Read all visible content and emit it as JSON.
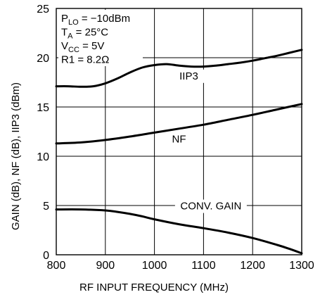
{
  "chart_data": {
    "type": "line",
    "title": "",
    "xlabel": "RF INPUT FREQUENCY (MHz)",
    "ylabel": "GAIN (dB), NF (dB), IIP3 (dBm)",
    "xlim": [
      800,
      1300
    ],
    "ylim": [
      0,
      25
    ],
    "xticks": [
      800,
      900,
      1000,
      1100,
      1200,
      1300
    ],
    "yticks": [
      0,
      5,
      10,
      15,
      20,
      25
    ],
    "grid": true,
    "legend": "none",
    "annotations": [
      {
        "main": "P",
        "sub": "LO",
        "rest": " = −10dBm"
      },
      {
        "main": "T",
        "sub": "A",
        "rest": " = 25°C"
      },
      {
        "main": "V",
        "sub": "CC",
        "rest": " = 5V"
      },
      {
        "main": "R1 = 8.2Ω",
        "sub": "",
        "rest": ""
      }
    ],
    "series": [
      {
        "name": "IIP3",
        "x": [
          800,
          825,
          850,
          875,
          900,
          925,
          950,
          975,
          1000,
          1025,
          1050,
          1075,
          1100,
          1125,
          1150,
          1175,
          1200,
          1225,
          1250,
          1275,
          1300
        ],
        "y": [
          17.1,
          17.1,
          17.05,
          17.1,
          17.4,
          17.9,
          18.5,
          19.0,
          19.25,
          19.35,
          19.2,
          19.1,
          19.1,
          19.2,
          19.35,
          19.5,
          19.7,
          19.95,
          20.2,
          20.5,
          20.8
        ]
      },
      {
        "name": "NF",
        "x": [
          800,
          850,
          900,
          950,
          1000,
          1050,
          1100,
          1150,
          1200,
          1250,
          1300
        ],
        "y": [
          11.3,
          11.4,
          11.65,
          12.0,
          12.4,
          12.8,
          13.2,
          13.7,
          14.2,
          14.75,
          15.3
        ]
      },
      {
        "name": "CONV. GAIN",
        "x": [
          800,
          850,
          900,
          925,
          950,
          975,
          1000,
          1050,
          1100,
          1150,
          1200,
          1250,
          1275,
          1300
        ],
        "y": [
          4.6,
          4.6,
          4.5,
          4.35,
          4.15,
          3.9,
          3.6,
          3.1,
          2.7,
          2.25,
          1.7,
          1.0,
          0.6,
          0.15
        ]
      }
    ],
    "colors": {
      "line": "#000000",
      "grid": "#000000",
      "background": "#ffffff"
    }
  }
}
